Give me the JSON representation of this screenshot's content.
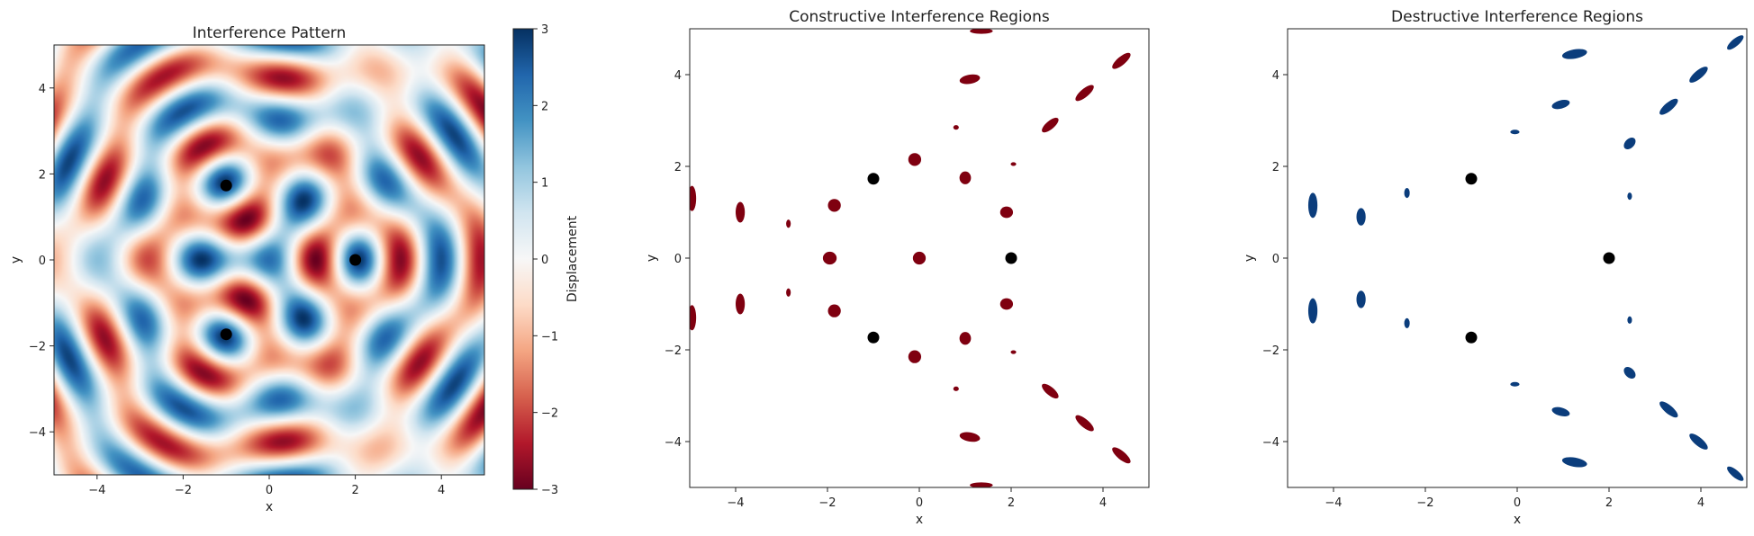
{
  "chart_data": [
    {
      "type": "heatmap",
      "title": "Interference Pattern",
      "xlabel": "x",
      "ylabel": "y",
      "xlim": [
        -5,
        5
      ],
      "ylim": [
        -5,
        5
      ],
      "xticks": [
        -4,
        -2,
        0,
        2,
        4
      ],
      "yticks": [
        -4,
        -2,
        0,
        2,
        4
      ],
      "colormap": "RdBu",
      "colorbar": {
        "label": "Displacement",
        "range": [
          -3,
          3
        ],
        "ticks": [
          -3,
          -2,
          -1,
          0,
          1,
          2,
          3
        ]
      },
      "wave_model": {
        "wavenumber": 3.5,
        "amplitude": 1
      },
      "sources": [
        {
          "x": -1,
          "y": 1.73
        },
        {
          "x": 2,
          "y": 0
        },
        {
          "x": -1,
          "y": -1.73
        }
      ],
      "colors": {
        "marker": "#000000",
        "low": "#67001f",
        "mid": "#f7f7f7",
        "high": "#053061"
      }
    },
    {
      "type": "scatter",
      "title": "Constructive Interference Regions",
      "xlabel": "x",
      "ylabel": "y",
      "xlim": [
        -5,
        5
      ],
      "ylim": [
        -5,
        5
      ],
      "xticks": [
        -4,
        -2,
        0,
        2,
        4
      ],
      "yticks": [
        -4,
        -2,
        0,
        2,
        4
      ],
      "region_color": "#7f0010",
      "sources": [
        {
          "x": -1,
          "y": 1.73
        },
        {
          "x": 2,
          "y": 0
        },
        {
          "x": -1,
          "y": -1.73
        }
      ],
      "regions": [
        {
          "x": 1.35,
          "y": 4.95,
          "w": 0.5,
          "h": 0.12,
          "a": 0
        },
        {
          "x": 1.1,
          "y": 3.9,
          "w": 0.45,
          "h": 0.2,
          "a": -10
        },
        {
          "x": 4.4,
          "y": 4.3,
          "w": 0.5,
          "h": 0.18,
          "a": -40
        },
        {
          "x": 3.6,
          "y": 3.6,
          "w": 0.5,
          "h": 0.18,
          "a": -40
        },
        {
          "x": 2.85,
          "y": 2.9,
          "w": 0.45,
          "h": 0.18,
          "a": -40
        },
        {
          "x": 0.8,
          "y": 2.85,
          "w": 0.12,
          "h": 0.1,
          "a": 0
        },
        {
          "x": -0.1,
          "y": 2.15,
          "w": 0.28,
          "h": 0.28,
          "a": 0
        },
        {
          "x": 1.0,
          "y": 1.75,
          "w": 0.25,
          "h": 0.28,
          "a": 0
        },
        {
          "x": 2.05,
          "y": 2.05,
          "w": 0.12,
          "h": 0.08,
          "a": 0
        },
        {
          "x": -1.85,
          "y": 1.15,
          "w": 0.28,
          "h": 0.28,
          "a": 0
        },
        {
          "x": 1.9,
          "y": 1.0,
          "w": 0.28,
          "h": 0.25,
          "a": 0
        },
        {
          "x": -3.9,
          "y": 1.0,
          "w": 0.2,
          "h": 0.45,
          "a": 0
        },
        {
          "x": -4.95,
          "y": 1.3,
          "w": 0.18,
          "h": 0.55,
          "a": 0
        },
        {
          "x": -2.85,
          "y": 0.75,
          "w": 0.1,
          "h": 0.18,
          "a": 0
        },
        {
          "x": -1.95,
          "y": 0.0,
          "w": 0.3,
          "h": 0.28,
          "a": 0
        },
        {
          "x": 0.0,
          "y": 0.0,
          "w": 0.28,
          "h": 0.28,
          "a": 0
        },
        {
          "x": -2.85,
          "y": -0.75,
          "w": 0.1,
          "h": 0.18,
          "a": 0
        },
        {
          "x": -1.85,
          "y": -1.15,
          "w": 0.28,
          "h": 0.28,
          "a": 0
        },
        {
          "x": 1.9,
          "y": -1.0,
          "w": 0.28,
          "h": 0.25,
          "a": 0
        },
        {
          "x": -3.9,
          "y": -1.0,
          "w": 0.2,
          "h": 0.45,
          "a": 0
        },
        {
          "x": -4.95,
          "y": -1.3,
          "w": 0.18,
          "h": 0.55,
          "a": 0
        },
        {
          "x": 1.0,
          "y": -1.75,
          "w": 0.25,
          "h": 0.28,
          "a": 0
        },
        {
          "x": -0.1,
          "y": -2.15,
          "w": 0.28,
          "h": 0.28,
          "a": 0
        },
        {
          "x": 2.05,
          "y": -2.05,
          "w": 0.12,
          "h": 0.08,
          "a": 0
        },
        {
          "x": 0.8,
          "y": -2.85,
          "w": 0.12,
          "h": 0.1,
          "a": 0
        },
        {
          "x": 2.85,
          "y": -2.9,
          "w": 0.45,
          "h": 0.18,
          "a": 40
        },
        {
          "x": 3.6,
          "y": -3.6,
          "w": 0.5,
          "h": 0.18,
          "a": 40
        },
        {
          "x": 1.1,
          "y": -3.9,
          "w": 0.45,
          "h": 0.2,
          "a": 10
        },
        {
          "x": 4.4,
          "y": -4.3,
          "w": 0.5,
          "h": 0.18,
          "a": 40
        },
        {
          "x": 1.35,
          "y": -4.95,
          "w": 0.5,
          "h": 0.12,
          "a": 0
        }
      ]
    },
    {
      "type": "scatter",
      "title": "Destructive Interference Regions",
      "xlabel": "x",
      "ylabel": "y",
      "xlim": [
        -5,
        5
      ],
      "ylim": [
        -5,
        5
      ],
      "xticks": [
        -4,
        -2,
        0,
        2,
        4
      ],
      "yticks": [
        -4,
        -2,
        0,
        2,
        4
      ],
      "region_color": "#0b3d7c",
      "sources": [
        {
          "x": -1,
          "y": 1.73
        },
        {
          "x": 2,
          "y": 0
        },
        {
          "x": -1,
          "y": -1.73
        }
      ],
      "regions": [
        {
          "x": 4.75,
          "y": 4.7,
          "w": 0.45,
          "h": 0.16,
          "a": -40
        },
        {
          "x": 1.25,
          "y": 4.45,
          "w": 0.55,
          "h": 0.2,
          "a": -10
        },
        {
          "x": 3.95,
          "y": 4.0,
          "w": 0.5,
          "h": 0.18,
          "a": -40
        },
        {
          "x": 3.3,
          "y": 3.3,
          "w": 0.5,
          "h": 0.18,
          "a": -40
        },
        {
          "x": 0.95,
          "y": 3.35,
          "w": 0.4,
          "h": 0.18,
          "a": -15
        },
        {
          "x": -0.05,
          "y": 2.75,
          "w": 0.2,
          "h": 0.1,
          "a": 0
        },
        {
          "x": 2.45,
          "y": 2.5,
          "w": 0.3,
          "h": 0.2,
          "a": -45
        },
        {
          "x": -2.4,
          "y": 1.42,
          "w": 0.12,
          "h": 0.22,
          "a": 0
        },
        {
          "x": 2.45,
          "y": 1.35,
          "w": 0.1,
          "h": 0.16,
          "a": 0
        },
        {
          "x": -4.45,
          "y": 1.15,
          "w": 0.2,
          "h": 0.55,
          "a": 0
        },
        {
          "x": -3.4,
          "y": 0.9,
          "w": 0.2,
          "h": 0.38,
          "a": 0
        },
        {
          "x": -4.45,
          "y": -1.15,
          "w": 0.2,
          "h": 0.55,
          "a": 0
        },
        {
          "x": -3.4,
          "y": -0.9,
          "w": 0.2,
          "h": 0.38,
          "a": 0
        },
        {
          "x": -2.4,
          "y": -1.42,
          "w": 0.12,
          "h": 0.22,
          "a": 0
        },
        {
          "x": 2.45,
          "y": -1.35,
          "w": 0.1,
          "h": 0.16,
          "a": 0
        },
        {
          "x": 2.45,
          "y": -2.5,
          "w": 0.3,
          "h": 0.2,
          "a": 45
        },
        {
          "x": -0.05,
          "y": -2.75,
          "w": 0.2,
          "h": 0.1,
          "a": 0
        },
        {
          "x": 0.95,
          "y": -3.35,
          "w": 0.4,
          "h": 0.18,
          "a": 15
        },
        {
          "x": 3.3,
          "y": -3.3,
          "w": 0.5,
          "h": 0.18,
          "a": 40
        },
        {
          "x": 3.95,
          "y": -4.0,
          "w": 0.5,
          "h": 0.18,
          "a": 40
        },
        {
          "x": 1.25,
          "y": -4.45,
          "w": 0.55,
          "h": 0.2,
          "a": 10
        },
        {
          "x": 4.75,
          "y": -4.7,
          "w": 0.45,
          "h": 0.16,
          "a": 40
        }
      ]
    }
  ]
}
